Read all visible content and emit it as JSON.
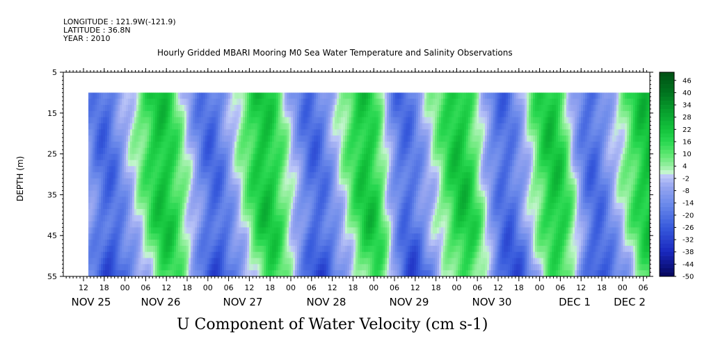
{
  "header": {
    "longitude": "LONGITUDE : 121.9W(-121.9)",
    "latitude": "LATITUDE : 36.8N",
    "year": "YEAR : 2010"
  },
  "chart_data": {
    "type": "heatmap",
    "title": "Hourly Gridded MBARI Mooring M0 Sea Water Temperature and Salinity Observations",
    "xlabel": "U Component of Water Velocity (cm s-1)",
    "ylabel": "DEPTH (m)",
    "ylim": [
      55,
      5
    ],
    "yticks": [
      5,
      15,
      25,
      35,
      45,
      55
    ],
    "x_hour_labels": [
      "12",
      "18",
      "00",
      "06",
      "12",
      "18",
      "00",
      "06",
      "12",
      "18",
      "00",
      "06",
      "12",
      "18",
      "00",
      "06",
      "12",
      "18",
      "00",
      "06",
      "12",
      "18",
      "00",
      "06",
      "12",
      "18",
      "00",
      "06"
    ],
    "x_day_labels": [
      "NOV 25",
      "NOV 26",
      "NOV 27",
      "NOV 28",
      "NOV 29",
      "NOV 30",
      "DEC  1",
      "DEC  2"
    ],
    "data_depth_range": [
      10,
      55
    ],
    "colorbar": {
      "labels": [
        46,
        40,
        34,
        28,
        22,
        16,
        10,
        4,
        -2,
        -8,
        -14,
        -20,
        -26,
        -32,
        -38,
        -44,
        -50
      ],
      "range": [
        -50,
        50
      ]
    },
    "velocity_pattern": {
      "description": "Alternating positive/negative bands of U velocity over time, roughly twice daily",
      "column_centers_hours": [
        4,
        22,
        38,
        55,
        71,
        88,
        100,
        118,
        132,
        148,
        160,
        178
      ],
      "column_signs": [
        -1,
        1,
        -1,
        1,
        -1,
        1,
        -1,
        1,
        -1,
        1,
        -1,
        1
      ]
    }
  }
}
